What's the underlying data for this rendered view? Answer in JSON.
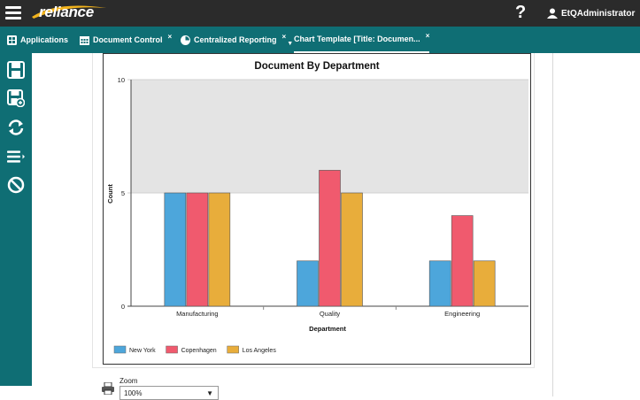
{
  "app": {
    "logo_text": "reliance",
    "help_label": "?",
    "user_name": "EtQAdministrator"
  },
  "tabs": [
    {
      "label": "Applications",
      "icon": "grid-icon"
    },
    {
      "label": "Document Control",
      "icon": "calendar-icon",
      "close": "×"
    },
    {
      "label": "Centralized Reporting",
      "icon": "dashboard-icon",
      "close": "×"
    },
    {
      "label": "Chart Template [Title: Documen...",
      "close": "×"
    }
  ],
  "sidebar": [
    {
      "icon": "save-icon"
    },
    {
      "icon": "save-as-icon"
    },
    {
      "icon": "refresh-icon"
    },
    {
      "icon": "list-menu-icon"
    },
    {
      "icon": "cancel-icon"
    }
  ],
  "chart_data": {
    "type": "bar",
    "title": "Document By Department",
    "xlabel": "Department",
    "ylabel": "Count",
    "ylim": [
      0,
      10
    ],
    "yticks": [
      0,
      5,
      10
    ],
    "categories": [
      "Manufacturing",
      "Quality",
      "Engineering"
    ],
    "series": [
      {
        "name": "New York",
        "color": "#4da6db",
        "values": [
          5,
          2,
          2
        ]
      },
      {
        "name": "Copenhagen",
        "color": "#f05a6e",
        "values": [
          5,
          6,
          4
        ]
      },
      {
        "name": "Los Angeles",
        "color": "#e8ad3b",
        "values": [
          5,
          5,
          2
        ]
      }
    ],
    "band_color": "#e4e4e4",
    "legend_position": "bottom-left"
  },
  "zoom": {
    "label": "Zoom",
    "value": "100%"
  }
}
